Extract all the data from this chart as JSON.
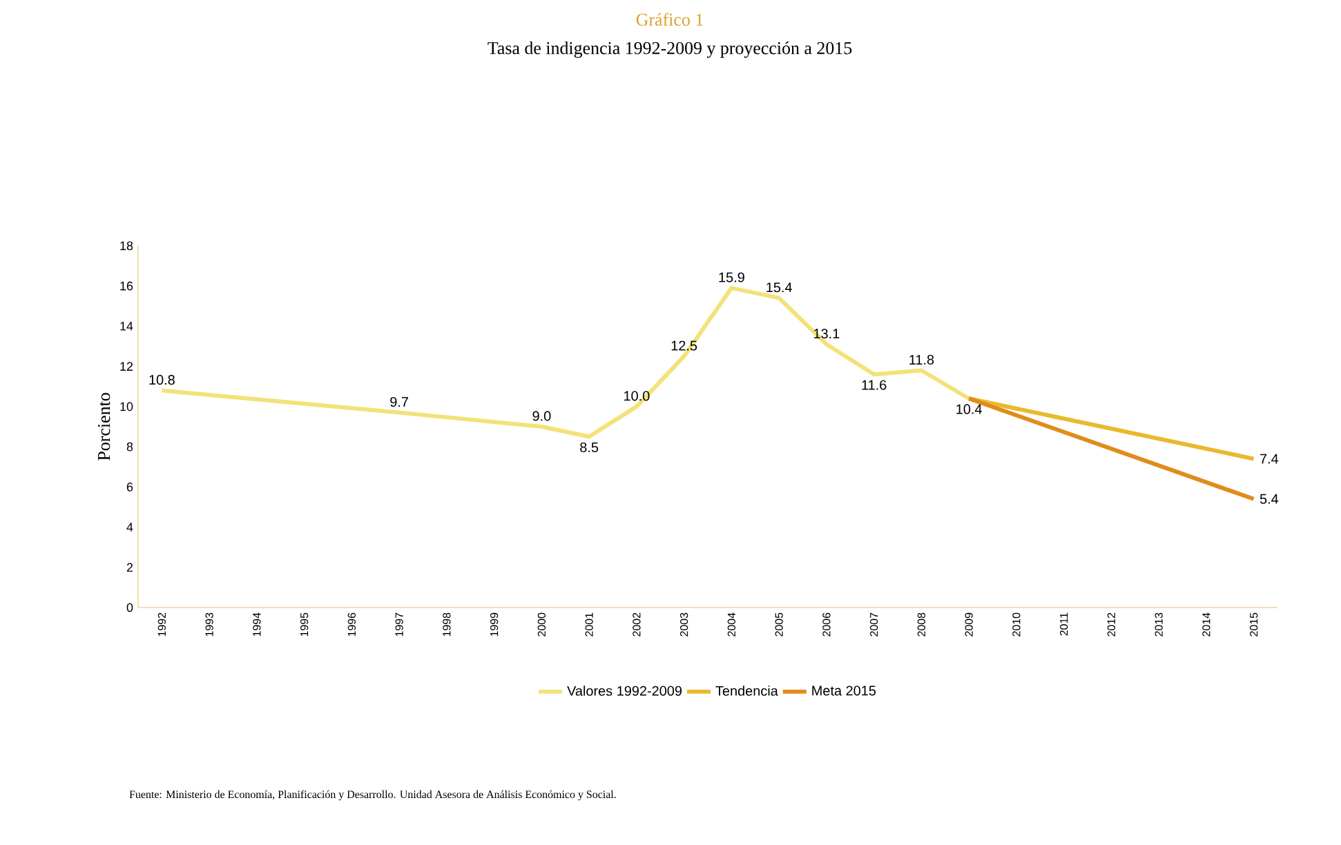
{
  "chart_data": {
    "type": "line",
    "title": "Gráfico 1",
    "subtitle": "Tasa de indigencia 1992-2009 y proyección a 2015",
    "ylabel": "Porciento",
    "xlim": [
      1991.5,
      2015.5
    ],
    "xticks": [
      1992,
      1993,
      1994,
      1995,
      1996,
      1997,
      1998,
      1999,
      2000,
      2001,
      2002,
      2003,
      2004,
      2005,
      2006,
      2007,
      2008,
      2009,
      2010,
      2011,
      2012,
      2013,
      2014,
      2015
    ],
    "ylim": [
      0,
      18
    ],
    "yticks": [
      0,
      2,
      4,
      6,
      8,
      10,
      12,
      14,
      16,
      18
    ],
    "grid": false,
    "legend": "bottom",
    "marker": "none",
    "line_style": "solid",
    "series": [
      {
        "name": "Valores 1992-2009",
        "color": "#f3e27a",
        "x": [
          1992,
          1997,
          2000,
          2001,
          2002,
          2003,
          2004,
          2005,
          2006,
          2007,
          2008,
          2009
        ],
        "values": [
          10.8,
          9.7,
          9.0,
          8.5,
          10.0,
          12.5,
          15.9,
          15.4,
          13.1,
          11.6,
          11.8,
          10.4
        ],
        "value_labels": [
          "10.8",
          "9.7",
          "9.0",
          "8.5",
          "10.0",
          "12.5",
          "15.9",
          "15.4",
          "13.1",
          "11.6",
          "11.8",
          "10.4"
        ]
      },
      {
        "name": "Tendencia",
        "color": "#e9b92e",
        "x": [
          2009,
          2015
        ],
        "values": [
          10.4,
          7.4
        ],
        "value_labels": [
          null,
          "7.4"
        ]
      },
      {
        "name": "Meta 2015",
        "color": "#e08c1c",
        "x": [
          2009,
          2015
        ],
        "values": [
          10.4,
          5.4
        ],
        "value_labels": [
          null,
          "5.4"
        ]
      }
    ],
    "annotations": [
      "Fuente: Ministerio de Economía, Planificación y Desarrollo. Unidad Asesora de Análisis Económico y Social."
    ]
  }
}
